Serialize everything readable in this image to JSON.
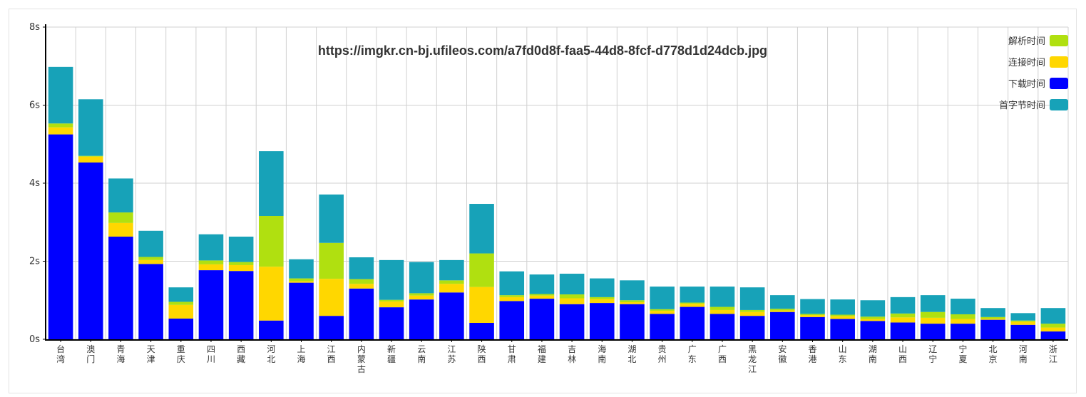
{
  "chart_data": {
    "type": "bar",
    "stacked": true,
    "title": "https://imgkr.cn-bj.ufileos.com/a7fd0d8f-faa5-44d8-8fcf-d778d1d24dcb.jpg",
    "xlabel": "",
    "ylabel": "",
    "ylim": [
      0,
      8
    ],
    "yticks": [
      0,
      2,
      4,
      6,
      8
    ],
    "ytick_labels": [
      "0s",
      "2s",
      "4s",
      "6s",
      "8s"
    ],
    "grid": true,
    "legend_position": "top-right",
    "categories": [
      "台湾",
      "澳门",
      "青海",
      "天津",
      "重庆",
      "四川",
      "西藏",
      "河北",
      "上海",
      "江西",
      "内蒙古",
      "新疆",
      "云南",
      "江苏",
      "陕西",
      "甘肃",
      "福建",
      "吉林",
      "海南",
      "湖北",
      "贵州",
      "广东",
      "广西",
      "黑龙江",
      "安徽",
      "香港",
      "山东",
      "湖南",
      "山西",
      "辽宁",
      "宁夏",
      "北京",
      "河南",
      "浙江"
    ],
    "series": [
      {
        "name": "下载时间",
        "color": "#0000ff",
        "values": [
          5.25,
          4.53,
          2.63,
          1.93,
          0.53,
          1.77,
          1.75,
          0.48,
          1.45,
          0.6,
          1.3,
          0.82,
          1.02,
          1.2,
          0.42,
          0.98,
          1.04,
          0.9,
          0.93,
          0.9,
          0.65,
          0.83,
          0.65,
          0.6,
          0.7,
          0.57,
          0.52,
          0.47,
          0.43,
          0.4,
          0.4,
          0.5,
          0.37,
          0.2
        ]
      },
      {
        "name": "连接时间",
        "color": "#ffd700",
        "values": [
          0.18,
          0.15,
          0.35,
          0.1,
          0.35,
          0.15,
          0.15,
          1.38,
          0.04,
          0.95,
          0.12,
          0.15,
          0.1,
          0.22,
          0.92,
          0.1,
          0.08,
          0.15,
          0.1,
          0.05,
          0.08,
          0.08,
          0.1,
          0.1,
          0.04,
          0.05,
          0.07,
          0.05,
          0.13,
          0.15,
          0.12,
          0.03,
          0.08,
          0.1
        ]
      },
      {
        "name": "解析时间",
        "color": "#b0e010",
        "values": [
          0.1,
          0.02,
          0.27,
          0.08,
          0.08,
          0.1,
          0.08,
          1.3,
          0.07,
          0.92,
          0.12,
          0.04,
          0.06,
          0.09,
          0.86,
          0.05,
          0.04,
          0.1,
          0.05,
          0.05,
          0.04,
          0.03,
          0.08,
          0.05,
          0.04,
          0.03,
          0.04,
          0.06,
          0.1,
          0.15,
          0.12,
          0.04,
          0.03,
          0.1
        ]
      },
      {
        "name": "首字节时间",
        "color": "#17a2b8",
        "values": [
          1.45,
          1.45,
          0.87,
          0.67,
          0.37,
          0.67,
          0.65,
          1.66,
          0.49,
          1.24,
          0.56,
          1.02,
          0.8,
          0.52,
          1.27,
          0.61,
          0.5,
          0.53,
          0.48,
          0.51,
          0.58,
          0.41,
          0.52,
          0.58,
          0.35,
          0.38,
          0.39,
          0.42,
          0.42,
          0.43,
          0.4,
          0.23,
          0.19,
          0.4
        ]
      }
    ],
    "legend_order": [
      "解析时间",
      "连接时间",
      "下载时间",
      "首字节时间"
    ]
  }
}
